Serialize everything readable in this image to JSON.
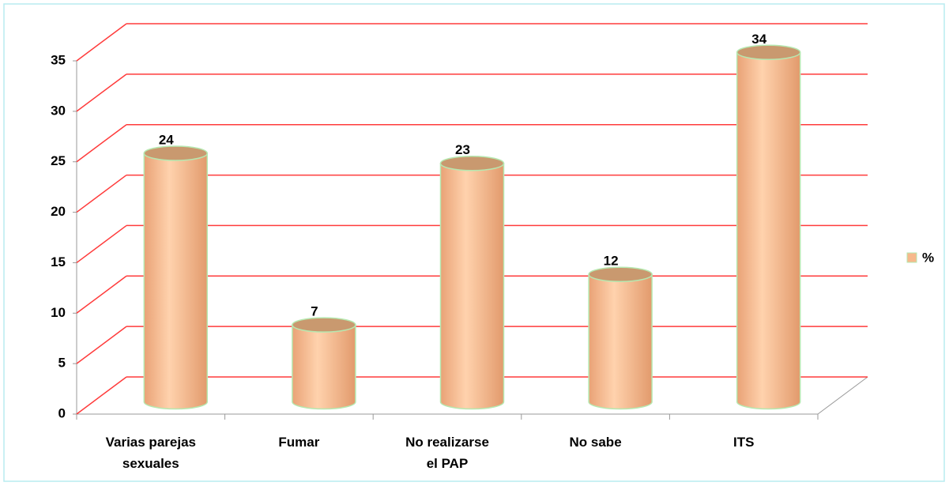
{
  "chart_data": {
    "type": "bar3d",
    "categories": [
      "Varias parejas sexuales",
      "Fumar",
      "No realizarse el PAP",
      "No sabe",
      "ITS"
    ],
    "series": [
      {
        "name": "%",
        "color": "#f7b98c",
        "values": [
          24,
          7,
          23,
          12,
          34
        ]
      }
    ],
    "ylim": [
      0,
      35
    ],
    "yticks": [
      0,
      5,
      10,
      15,
      20,
      25,
      30,
      35
    ],
    "grid": true,
    "legend": "right"
  }
}
